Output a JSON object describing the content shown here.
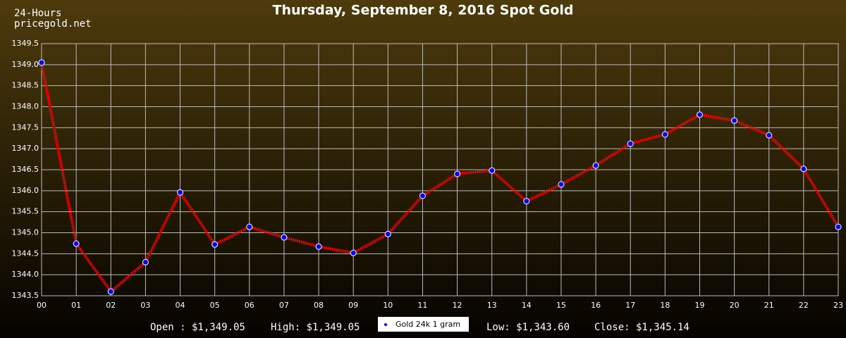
{
  "chart_data": {
    "type": "line",
    "title": "Thursday, September 8, 2016 Spot Gold",
    "corner_texts": [
      "24-Hours",
      "pricegold.net"
    ],
    "categories": [
      "00",
      "01",
      "02",
      "03",
      "04",
      "05",
      "06",
      "07",
      "08",
      "09",
      "10",
      "11",
      "12",
      "13",
      "14",
      "15",
      "16",
      "17",
      "18",
      "19",
      "20",
      "21",
      "22",
      "23"
    ],
    "series": [
      {
        "name": "Gold 24k 1 gram",
        "color": "#ff0000",
        "marker_color": "#0000ff",
        "values": [
          1349.05,
          1344.74,
          1343.6,
          1344.3,
          1345.96,
          1344.72,
          1345.14,
          1344.89,
          1344.67,
          1344.52,
          1344.97,
          1345.88,
          1346.4,
          1346.48,
          1345.75,
          1346.15,
          1346.6,
          1347.12,
          1347.34,
          1347.81,
          1347.67,
          1347.32,
          1346.52,
          1345.14
        ]
      }
    ],
    "ylim": [
      1343.5,
      1349.5
    ],
    "yticks": [
      1343.5,
      {
        "value": 1344,
        "label": "1344.0"
      },
      1344.5,
      {
        "value": 1345,
        "label": "1345.0"
      },
      1345.5,
      {
        "value": 1346,
        "label": "1346.0"
      },
      1346.5,
      {
        "value": 1347,
        "label": "1347.0"
      },
      1347.5,
      {
        "value": 1348,
        "label": "1348.0"
      },
      1348.5,
      {
        "value": 1349,
        "label": "1349.0"
      },
      1349.5
    ],
    "grid": true,
    "stats_left": [
      "Open : $1,349.05",
      "High: $1,349.05"
    ],
    "stats_right": [
      "Low: $1,343.60",
      "Close: $1,345.14"
    ]
  }
}
